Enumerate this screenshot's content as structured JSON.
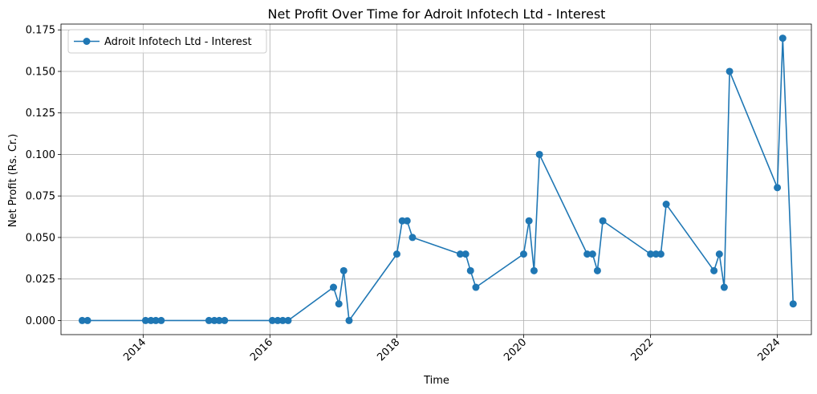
{
  "chart_data": {
    "type": "line",
    "title": "Net Profit Over Time for Adroit Infotech Ltd - Interest",
    "xlabel": "Time",
    "ylabel": "Net Profit (Rs. Cr.)",
    "xlim": [
      "2012-09-15",
      "2024-07-15"
    ],
    "ylim": [
      -0.0085,
      0.1785
    ],
    "x_ticks": [
      "2014",
      "2016",
      "2018",
      "2020",
      "2022",
      "2024"
    ],
    "y_ticks": [
      "0.000",
      "0.025",
      "0.050",
      "0.075",
      "0.100",
      "0.125",
      "0.150",
      "0.175"
    ],
    "grid": true,
    "legend_position": "upper-left",
    "color": "#1f77b4",
    "series": [
      {
        "name": "Adroit Infotech Ltd - Interest",
        "points": [
          [
            "2013-01-15",
            0.0
          ],
          [
            "2013-02-15",
            0.0
          ],
          [
            "2014-01-15",
            0.0
          ],
          [
            "2014-02-15",
            0.0
          ],
          [
            "2014-03-15",
            0.0
          ],
          [
            "2014-04-15",
            0.0
          ],
          [
            "2015-01-15",
            0.0
          ],
          [
            "2015-02-15",
            0.0
          ],
          [
            "2015-03-15",
            0.0
          ],
          [
            "2015-04-15",
            0.0
          ],
          [
            "2016-01-15",
            0.0
          ],
          [
            "2016-02-15",
            0.0
          ],
          [
            "2016-03-15",
            0.0
          ],
          [
            "2016-04-15",
            0.0
          ],
          [
            "2017-01-01",
            0.02
          ],
          [
            "2017-02-01",
            0.01
          ],
          [
            "2017-03-01",
            0.03
          ],
          [
            "2017-04-01",
            0.0
          ],
          [
            "2018-01-01",
            0.04
          ],
          [
            "2018-02-01",
            0.06
          ],
          [
            "2018-03-01",
            0.06
          ],
          [
            "2018-04-01",
            0.05
          ],
          [
            "2019-01-01",
            0.04
          ],
          [
            "2019-02-01",
            0.04
          ],
          [
            "2019-03-01",
            0.03
          ],
          [
            "2019-04-01",
            0.02
          ],
          [
            "2020-01-01",
            0.04
          ],
          [
            "2020-02-01",
            0.06
          ],
          [
            "2020-03-01",
            0.03
          ],
          [
            "2020-04-01",
            0.1
          ],
          [
            "2021-01-01",
            0.04
          ],
          [
            "2021-02-01",
            0.04
          ],
          [
            "2021-03-01",
            0.03
          ],
          [
            "2021-04-01",
            0.06
          ],
          [
            "2022-01-01",
            0.04
          ],
          [
            "2022-02-01",
            0.04
          ],
          [
            "2022-03-01",
            0.04
          ],
          [
            "2022-04-01",
            0.07
          ],
          [
            "2023-01-01",
            0.03
          ],
          [
            "2023-02-01",
            0.04
          ],
          [
            "2023-03-01",
            0.02
          ],
          [
            "2023-04-01",
            0.15
          ],
          [
            "2024-01-01",
            0.08
          ],
          [
            "2024-02-01",
            0.17
          ],
          [
            "2024-04-01",
            0.01
          ]
        ]
      }
    ]
  }
}
